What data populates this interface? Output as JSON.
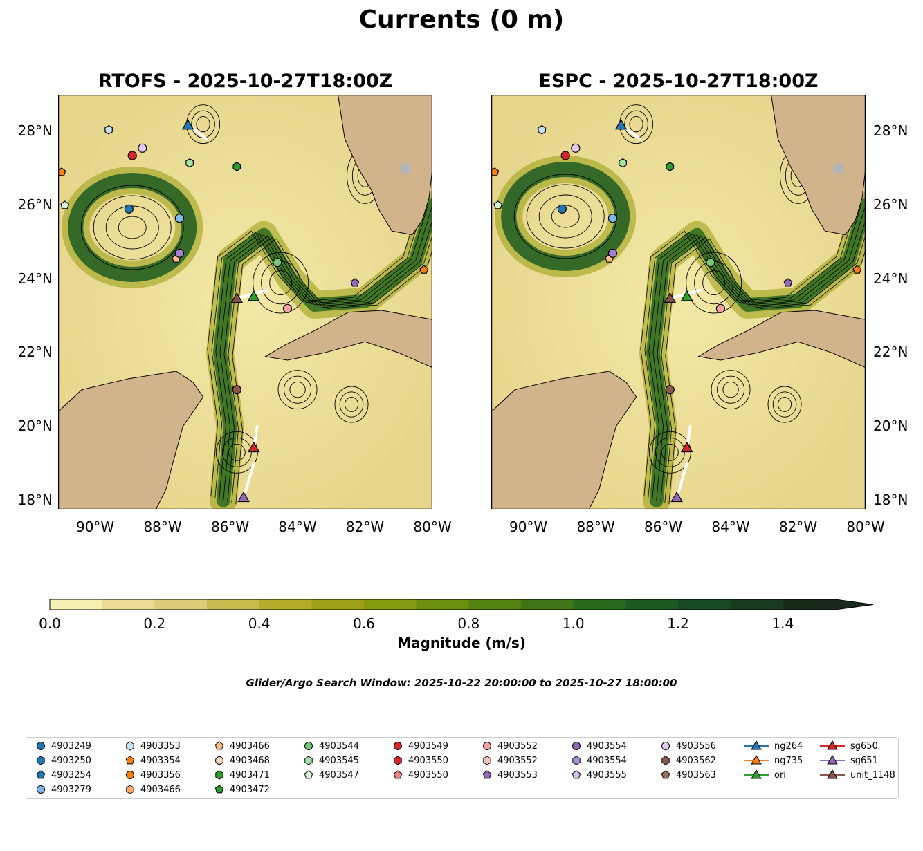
{
  "title": "Currents (0 m)",
  "panels": [
    {
      "title": "RTOFS - 2025-10-27T18:00Z"
    },
    {
      "title": "ESPC - 2025-10-27T18:00Z"
    }
  ],
  "axes": {
    "lon_ticks": [
      "90°W",
      "88°W",
      "86°W",
      "84°W",
      "82°W",
      "80°W"
    ],
    "lat_ticks": [
      "18°N",
      "20°N",
      "22°N",
      "24°N",
      "26°N",
      "28°N"
    ]
  },
  "colorbar": {
    "label": "Magnitude (m/s)",
    "ticks": [
      "0.0",
      "0.2",
      "0.4",
      "0.6",
      "0.8",
      "1.0",
      "1.2",
      "1.4"
    ],
    "colors": [
      "#f7f0b4",
      "#eadc94",
      "#dccd7a",
      "#c9bb4e",
      "#b3ad2c",
      "#9da11a",
      "#849a10",
      "#6c8f10",
      "#548212",
      "#3f7518",
      "#2a6a1e",
      "#1c5a22",
      "#174a24",
      "#1a3a1f",
      "#1a2a1a"
    ]
  },
  "search_window": "Glider/Argo Search Window: 2025-10-22 20:00:00 to 2025-10-27 18:00:00",
  "colors": {
    "land": "#d2b48c",
    "river": "#9bc3e6",
    "glider_track": "#ffffff"
  },
  "chart_data": {
    "type": "map",
    "lon_range": [
      -91.1,
      -80.0
    ],
    "lat_range": [
      17.75,
      29.0
    ],
    "variable": "Magnitude (m/s)",
    "color_range": [
      0.0,
      1.5
    ],
    "panels": [
      {
        "model": "RTOFS",
        "time": "2025-10-27T18:00Z",
        "argo": [
          {
            "id": "4903249",
            "lon": -89.0,
            "lat": 25.9,
            "color": "#1f77b4",
            "marker": "circle"
          },
          {
            "id": "4903279",
            "lon": -87.5,
            "lat": 25.65,
            "color": "#7fb6e8",
            "marker": "circle"
          },
          {
            "id": "4903353",
            "lon": -89.6,
            "lat": 28.05,
            "color": "#c6e3f5",
            "marker": "hexagon"
          },
          {
            "id": "4903354",
            "lon": -91.0,
            "lat": 26.9,
            "color": "#ff7f0e",
            "marker": "pentagon"
          },
          {
            "id": "4903466",
            "lon": -87.6,
            "lat": 24.55,
            "color": "#fdbf87",
            "marker": "pentagon"
          },
          {
            "id": "4903471",
            "lon": -85.8,
            "lat": 27.05,
            "color": "#2ca02c",
            "marker": "hexagon"
          },
          {
            "id": "4903544",
            "lon": -84.6,
            "lat": 24.45,
            "color": "#76c776",
            "marker": "circle"
          },
          {
            "id": "4903545",
            "lon": -87.2,
            "lat": 27.15,
            "color": "#a6e3a6",
            "marker": "hexagon"
          },
          {
            "id": "4903547",
            "lon": -90.9,
            "lat": 26.0,
            "color": "#d6f5d6",
            "marker": "pentagon"
          },
          {
            "id": "4903549",
            "lon": -88.9,
            "lat": 27.35,
            "color": "#d62728",
            "marker": "circle"
          },
          {
            "id": "4903552",
            "lon": -84.3,
            "lat": 23.2,
            "color": "#f7a1a1",
            "marker": "circle"
          },
          {
            "id": "4903553",
            "lon": -82.3,
            "lat": 23.9,
            "color": "#9467bd",
            "marker": "pentagon"
          },
          {
            "id": "4903554",
            "lon": -87.5,
            "lat": 24.7,
            "color": "#a77fd4",
            "marker": "circle"
          },
          {
            "id": "4903556",
            "lon": -88.6,
            "lat": 27.55,
            "color": "#e4c8f0",
            "marker": "circle"
          },
          {
            "id": "4903562",
            "lon": -85.8,
            "lat": 21.0,
            "color": "#8c564b",
            "marker": "circle"
          },
          {
            "id": "4903356",
            "lon": -80.25,
            "lat": 24.25,
            "color": "#ff7f0e",
            "marker": "pentagon"
          }
        ],
        "gliders": [
          {
            "id": "ng264",
            "lon": -87.25,
            "lat": 28.15,
            "color": "#1f77b4",
            "track": [
              [
                -87.2,
                28.15
              ],
              [
                -86.7,
                27.8
              ]
            ]
          },
          {
            "id": "ori",
            "lon": -85.3,
            "lat": 23.5,
            "color": "#2ca02c",
            "track": [
              [
                -85.7,
                23.5
              ],
              [
                -84.9,
                23.7
              ]
            ]
          },
          {
            "id": "sg650",
            "lon": -85.3,
            "lat": 19.4,
            "color": "#d62728",
            "track": [
              [
                -85.2,
                20.0
              ],
              [
                -85.3,
                19.4
              ]
            ]
          },
          {
            "id": "sg651",
            "lon": -85.6,
            "lat": 18.05,
            "color": "#9467bd",
            "track": [
              [
                -85.3,
                19.0
              ],
              [
                -85.6,
                18.05
              ]
            ]
          },
          {
            "id": "unit_1148",
            "lon": -85.8,
            "lat": 23.45,
            "color": "#8c564b",
            "track": []
          }
        ]
      },
      {
        "model": "ESPC",
        "time": "2025-10-27T18:00Z",
        "argo": [
          {
            "id": "4903249",
            "lon": -89.0,
            "lat": 25.9,
            "color": "#1f77b4",
            "marker": "circle"
          },
          {
            "id": "4903279",
            "lon": -87.5,
            "lat": 25.65,
            "color": "#7fb6e8",
            "marker": "circle"
          },
          {
            "id": "4903353",
            "lon": -89.6,
            "lat": 28.05,
            "color": "#c6e3f5",
            "marker": "hexagon"
          },
          {
            "id": "4903354",
            "lon": -91.0,
            "lat": 26.9,
            "color": "#ff7f0e",
            "marker": "pentagon"
          },
          {
            "id": "4903466",
            "lon": -87.6,
            "lat": 24.55,
            "color": "#fdbf87",
            "marker": "pentagon"
          },
          {
            "id": "4903471",
            "lon": -85.8,
            "lat": 27.05,
            "color": "#2ca02c",
            "marker": "hexagon"
          },
          {
            "id": "4903544",
            "lon": -84.6,
            "lat": 24.45,
            "color": "#76c776",
            "marker": "circle"
          },
          {
            "id": "4903545",
            "lon": -87.2,
            "lat": 27.15,
            "color": "#a6e3a6",
            "marker": "hexagon"
          },
          {
            "id": "4903547",
            "lon": -90.9,
            "lat": 26.0,
            "color": "#d6f5d6",
            "marker": "pentagon"
          },
          {
            "id": "4903549",
            "lon": -88.9,
            "lat": 27.35,
            "color": "#d62728",
            "marker": "circle"
          },
          {
            "id": "4903552",
            "lon": -84.3,
            "lat": 23.2,
            "color": "#f7a1a1",
            "marker": "circle"
          },
          {
            "id": "4903553",
            "lon": -82.3,
            "lat": 23.9,
            "color": "#9467bd",
            "marker": "pentagon"
          },
          {
            "id": "4903554",
            "lon": -87.5,
            "lat": 24.7,
            "color": "#a77fd4",
            "marker": "circle"
          },
          {
            "id": "4903556",
            "lon": -88.6,
            "lat": 27.55,
            "color": "#e4c8f0",
            "marker": "circle"
          },
          {
            "id": "4903562",
            "lon": -85.8,
            "lat": 21.0,
            "color": "#8c564b",
            "marker": "circle"
          },
          {
            "id": "4903356",
            "lon": -80.25,
            "lat": 24.25,
            "color": "#ff7f0e",
            "marker": "pentagon"
          }
        ],
        "gliders": [
          {
            "id": "ng264",
            "lon": -87.25,
            "lat": 28.15,
            "color": "#1f77b4",
            "track": [
              [
                -87.2,
                28.15
              ],
              [
                -86.7,
                27.8
              ]
            ]
          },
          {
            "id": "ori",
            "lon": -85.3,
            "lat": 23.5,
            "color": "#2ca02c",
            "track": [
              [
                -85.7,
                23.5
              ],
              [
                -84.9,
                23.7
              ]
            ]
          },
          {
            "id": "sg650",
            "lon": -85.3,
            "lat": 19.4,
            "color": "#d62728",
            "track": [
              [
                -85.2,
                20.0
              ],
              [
                -85.3,
                19.4
              ]
            ]
          },
          {
            "id": "sg651",
            "lon": -85.6,
            "lat": 18.05,
            "color": "#9467bd",
            "track": [
              [
                -85.3,
                19.0
              ],
              [
                -85.6,
                18.05
              ]
            ]
          },
          {
            "id": "unit_1148",
            "lon": -85.8,
            "lat": 23.45,
            "color": "#8c564b",
            "track": []
          }
        ]
      }
    ]
  },
  "legend": {
    "columns": [
      [
        {
          "label": "4903249",
          "marker": "circle",
          "color": "#1f77b4"
        },
        {
          "label": "4903250",
          "marker": "hexagon",
          "color": "#1f77b4"
        },
        {
          "label": "4903254",
          "marker": "pentagon",
          "color": "#1f77b4"
        },
        {
          "label": "4903279",
          "marker": "circle",
          "color": "#7fb6e8"
        }
      ],
      [
        {
          "label": "4903353",
          "marker": "hexagon",
          "color": "#c6e3f5"
        },
        {
          "label": "4903354",
          "marker": "pentagon",
          "color": "#ff7f0e"
        },
        {
          "label": "4903356",
          "marker": "circle",
          "color": "#ff7f0e"
        },
        {
          "label": "4903466",
          "marker": "hexagon",
          "color": "#fdab6b"
        }
      ],
      [
        {
          "label": "4903466",
          "marker": "pentagon",
          "color": "#fdbf87"
        },
        {
          "label": "4903468",
          "marker": "circle",
          "color": "#fdd8b8"
        },
        {
          "label": "4903471",
          "marker": "hexagon",
          "color": "#2ca02c"
        },
        {
          "label": "4903472",
          "marker": "pentagon",
          "color": "#2ca02c"
        }
      ],
      [
        {
          "label": "4903544",
          "marker": "circle",
          "color": "#76c776"
        },
        {
          "label": "4903545",
          "marker": "hexagon",
          "color": "#a6e3a6"
        },
        {
          "label": "4903547",
          "marker": "pentagon",
          "color": "#d6f5d6"
        }
      ],
      [
        {
          "label": "4903549",
          "marker": "circle",
          "color": "#d62728"
        },
        {
          "label": "4903550",
          "marker": "hexagon",
          "color": "#d62728"
        },
        {
          "label": "4903550",
          "marker": "pentagon",
          "color": "#f08080"
        }
      ],
      [
        {
          "label": "4903552",
          "marker": "circle",
          "color": "#f7a1a1"
        },
        {
          "label": "4903552",
          "marker": "hexagon",
          "color": "#f9c0c0"
        },
        {
          "label": "4903553",
          "marker": "pentagon",
          "color": "#9467bd"
        }
      ],
      [
        {
          "label": "4903554",
          "marker": "circle",
          "color": "#9467bd"
        },
        {
          "label": "4903554",
          "marker": "hexagon",
          "color": "#b08fd6"
        },
        {
          "label": "4903555",
          "marker": "pentagon",
          "color": "#d8bff0"
        }
      ],
      [
        {
          "label": "4903556",
          "marker": "circle",
          "color": "#e4c8f0"
        },
        {
          "label": "4903562",
          "marker": "hexagon",
          "color": "#8c564b"
        },
        {
          "label": "4903563",
          "marker": "pentagon",
          "color": "#a0705f"
        }
      ],
      [
        {
          "label": "ng264",
          "marker": "triangle",
          "color": "#1f77b4"
        },
        {
          "label": "ng735",
          "marker": "triangle",
          "color": "#ff7f0e"
        },
        {
          "label": "ori",
          "marker": "triangle",
          "color": "#2ca02c"
        }
      ],
      [
        {
          "label": "sg650",
          "marker": "triangle",
          "color": "#d62728"
        },
        {
          "label": "sg651",
          "marker": "triangle",
          "color": "#9467bd"
        },
        {
          "label": "unit_1148",
          "marker": "triangle",
          "color": "#8c564b"
        }
      ]
    ]
  }
}
